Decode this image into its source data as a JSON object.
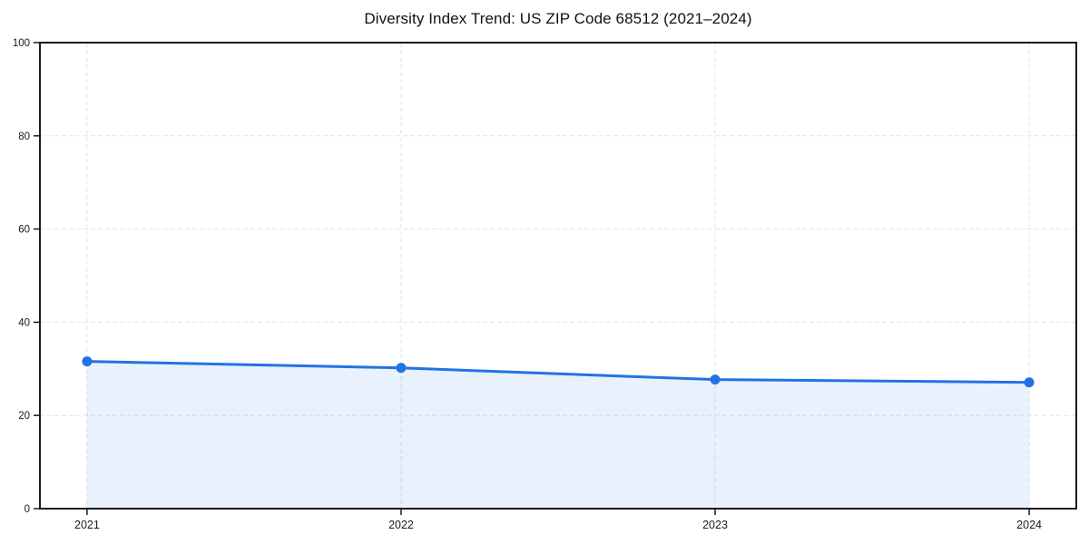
{
  "title": "Diversity Index Trend: US ZIP Code 68512 (2021–2024)",
  "chart_data": {
    "type": "line",
    "title": "Diversity Index Trend: US ZIP Code 68512 (2021–2024)",
    "x": [
      2021,
      2022,
      2023,
      2024
    ],
    "xtick_labels": [
      "2021",
      "2022",
      "2023",
      "2024"
    ],
    "xticks": [
      2021,
      2022,
      2023,
      2024
    ],
    "yticks": [
      0,
      20,
      40,
      60,
      80,
      100
    ],
    "series": [
      {
        "name": "Diversity Index",
        "values": [
          31.6,
          30.2,
          27.7,
          27.1
        ]
      }
    ],
    "xlabel": "",
    "ylabel": "",
    "xlim": [
      2020.85,
      2024.15
    ],
    "ylim": [
      0,
      100
    ],
    "grid": true,
    "grid_style": "dashed",
    "legend_position": "none",
    "area_fill": true,
    "marker": "circle",
    "colors": {
      "line": "#2273e2",
      "fill": "#2273e2",
      "fill_opacity": 0.1,
      "grid": "#e2e2e2",
      "spine": "#1a1a1a",
      "text": "#1a1a1a",
      "background": "#ffffff"
    }
  }
}
